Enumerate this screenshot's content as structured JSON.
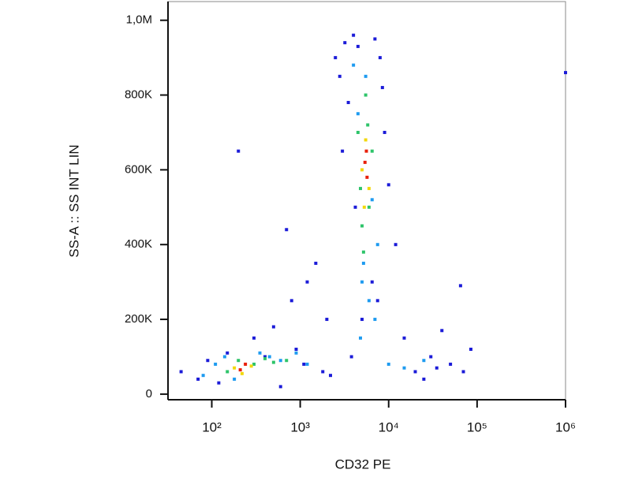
{
  "chart_data": {
    "type": "scatter",
    "x_label": "CD32 PE",
    "y_label": "SS-A :: SS INT LIN",
    "xscale": "log",
    "xlim": [
      32,
      1000000
    ],
    "xticks": [
      {
        "value": 100,
        "label": "10²"
      },
      {
        "value": 1000,
        "label": "10³"
      },
      {
        "value": 10000,
        "label": "10⁴"
      },
      {
        "value": 100000,
        "label": "10⁵"
      },
      {
        "value": 1000000,
        "label": "10⁶"
      }
    ],
    "ylim": [
      -15000,
      1050000
    ],
    "yticks": [
      0,
      {
        "value": 200000,
        "label": "200K"
      },
      {
        "value": 400000,
        "label": "400K"
      },
      {
        "value": 600000,
        "label": "600K"
      },
      {
        "value": 800000,
        "label": "800K"
      },
      {
        "value": 1000000,
        "label": "1,0M"
      }
    ],
    "grid": false,
    "series": [
      {
        "color": "#1b1bd8",
        "x": [
          45,
          70,
          90,
          120,
          150,
          300,
          500,
          800,
          1200,
          1500,
          2000,
          700,
          900,
          1100,
          2500,
          2800,
          3200,
          3500,
          4000,
          4500,
          7000,
          8000,
          9000,
          12000,
          15000,
          20000,
          30000,
          50000,
          70000,
          85000,
          25000,
          40000,
          3000,
          4200,
          6500,
          7500,
          5000,
          3800,
          8500,
          10000,
          600,
          1800,
          2200,
          1000000,
          400,
          200,
          65000,
          35000
        ],
        "values": [
          60000,
          40000,
          90000,
          30000,
          110000,
          150000,
          180000,
          250000,
          300000,
          350000,
          200000,
          440000,
          120000,
          80000,
          900000,
          850000,
          940000,
          780000,
          960000,
          930000,
          950000,
          900000,
          700000,
          400000,
          150000,
          60000,
          100000,
          80000,
          60000,
          120000,
          40000,
          170000,
          650000,
          500000,
          300000,
          250000,
          200000,
          100000,
          820000,
          560000,
          20000,
          60000,
          50000,
          860000,
          100000,
          650000,
          290000,
          70000
        ]
      },
      {
        "color": "#1e9bf0",
        "x": [
          80,
          110,
          140,
          180,
          350,
          450,
          600,
          900,
          1200,
          4000,
          4500,
          5000,
          6000,
          7000,
          7500,
          5500,
          6500,
          4800,
          5200,
          15000,
          25000,
          10000
        ],
        "values": [
          50000,
          80000,
          100000,
          40000,
          110000,
          100000,
          90000,
          110000,
          80000,
          880000,
          750000,
          300000,
          250000,
          200000,
          400000,
          850000,
          520000,
          150000,
          350000,
          70000,
          90000,
          80000
        ]
      },
      {
        "color": "#2ec46a",
        "x": [
          150,
          200,
          300,
          400,
          500,
          700,
          4500,
          5000,
          5500,
          6000,
          6500,
          5200,
          4800,
          5800
        ],
        "values": [
          60000,
          90000,
          80000,
          95000,
          85000,
          90000,
          700000,
          450000,
          800000,
          500000,
          650000,
          380000,
          550000,
          720000
        ]
      },
      {
        "color": "#f2d80c",
        "x": [
          180,
          220,
          280,
          5000,
          5500,
          6000,
          5300
        ],
        "values": [
          70000,
          55000,
          75000,
          600000,
          680000,
          550000,
          500000
        ]
      },
      {
        "color": "#e8200a",
        "x": [
          210,
          240,
          5400,
          5700,
          5600
        ],
        "values": [
          65000,
          80000,
          620000,
          580000,
          650000
        ]
      }
    ]
  }
}
